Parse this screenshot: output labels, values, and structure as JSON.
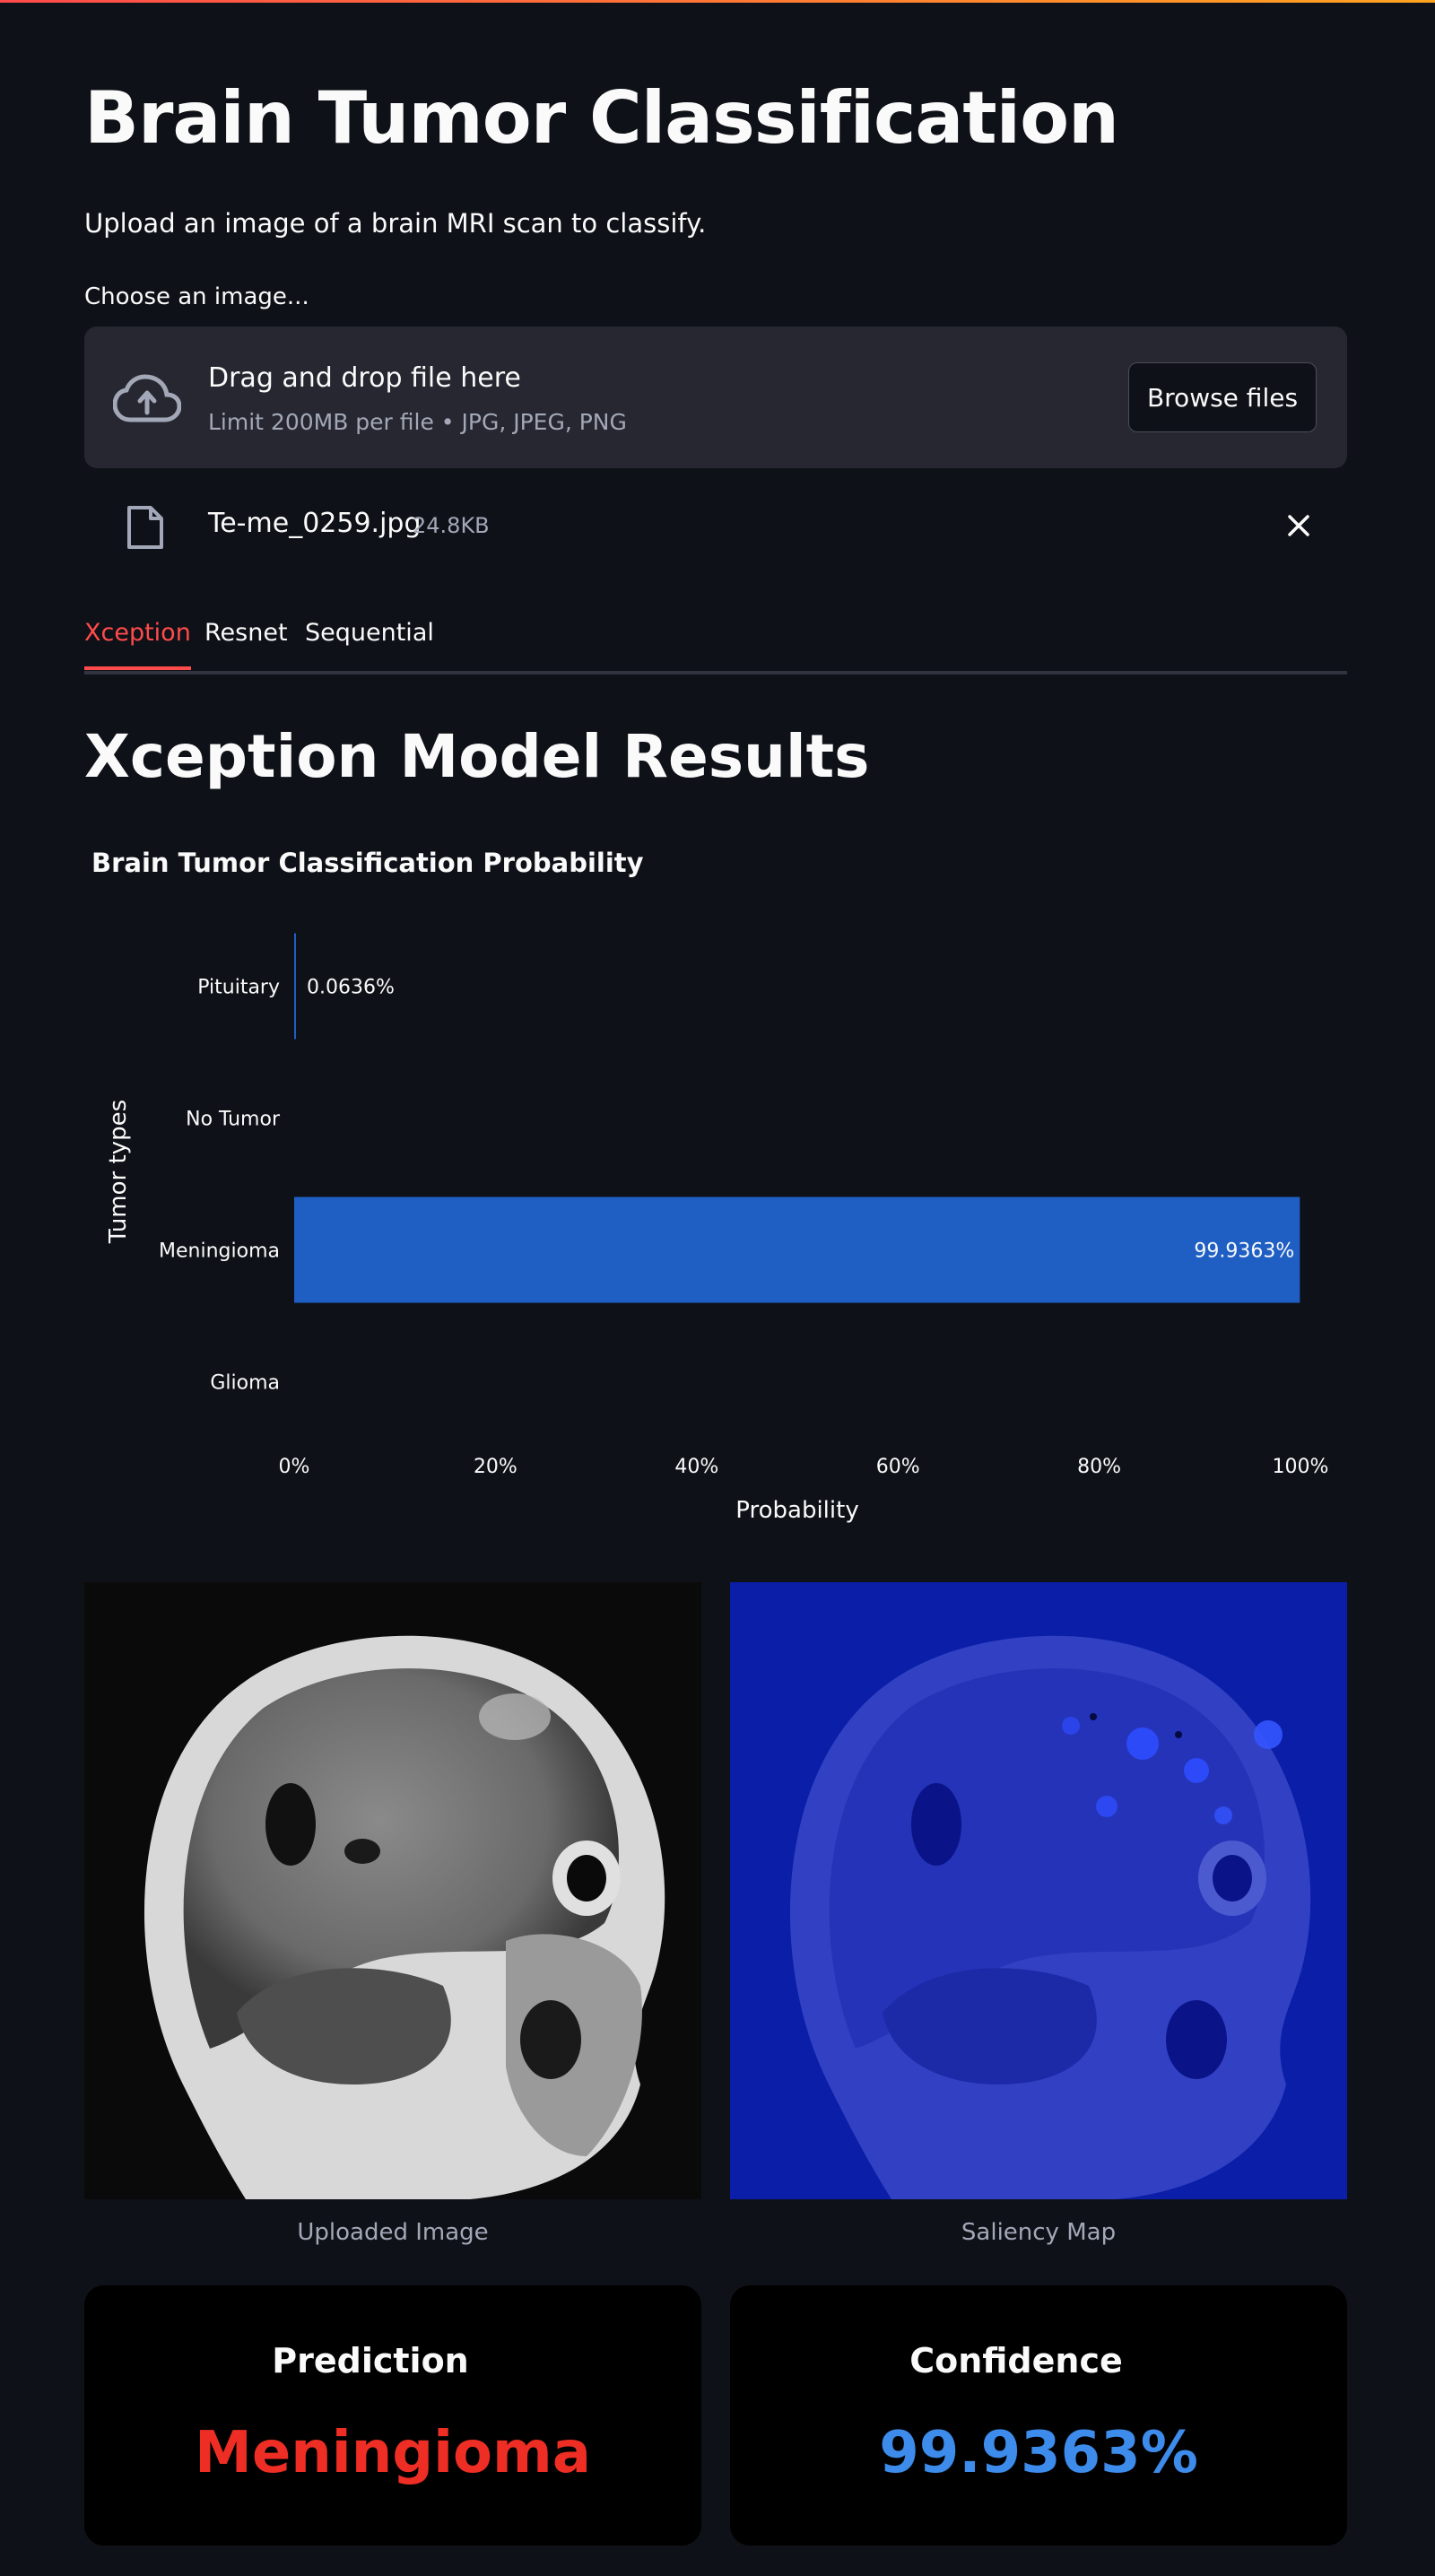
{
  "page": {
    "title": "Brain Tumor Classification",
    "subtitle": "Upload an image of a brain MRI scan to classify.",
    "accent_color": "#ff4b4b"
  },
  "uploader": {
    "label": "Choose an image...",
    "drop_text": "Drag and drop file here",
    "limit_text": "Limit 200MB per file • JPG, JPEG, PNG",
    "browse_label": "Browse files",
    "icon": "cloud-upload-icon"
  },
  "file": {
    "name": "Te-me_0259.jpg",
    "size": "24.8KB",
    "icon": "file-icon"
  },
  "tabs": [
    {
      "label": "Xception",
      "active": true
    },
    {
      "label": "Resnet",
      "active": false
    },
    {
      "label": "Sequential",
      "active": false
    }
  ],
  "section_title": "Xception Model Results",
  "chart_data": {
    "type": "bar",
    "orientation": "horizontal",
    "title": "Brain Tumor Classification Probability",
    "xlabel": "Probability",
    "ylabel": "Tumor types",
    "categories": [
      "Pituitary",
      "No Tumor",
      "Meningioma",
      "Glioma"
    ],
    "values": [
      0.000636,
      0.0,
      0.999363,
      0.0
    ],
    "data_labels": [
      "0.0636%",
      "",
      "99.9363%",
      ""
    ],
    "xlim": [
      0,
      1
    ],
    "xticks": [
      "0%",
      "20%",
      "40%",
      "60%",
      "80%",
      "100%"
    ],
    "bar_color": "#1f5fc4",
    "grid": false
  },
  "images": {
    "left_caption": "Uploaded Image",
    "right_caption": "Saliency Map"
  },
  "results": {
    "prediction_label": "Prediction",
    "prediction_value": "Meningioma",
    "prediction_color": "#ee2e24",
    "confidence_label": "Confidence",
    "confidence_value": "99.9363%",
    "confidence_color": "#3d8bea"
  }
}
